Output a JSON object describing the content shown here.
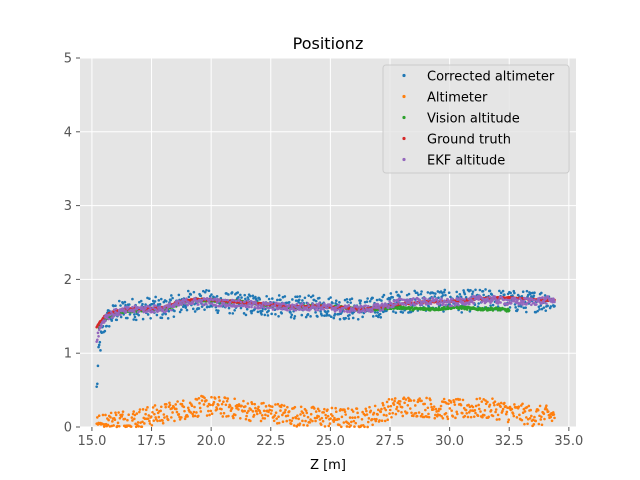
{
  "chart_data": {
    "type": "scatter",
    "title": "Positionz",
    "xlabel": "Z [m]",
    "ylabel": "",
    "xlim": [
      14.5,
      35.3
    ],
    "ylim": [
      0,
      5
    ],
    "xticks": [
      15.0,
      17.5,
      20.0,
      22.5,
      25.0,
      27.5,
      30.0,
      32.5,
      35.0
    ],
    "xtick_labels": [
      "15.0",
      "17.5",
      "20.0",
      "22.5",
      "25.0",
      "27.5",
      "30.0",
      "32.5",
      "35.0"
    ],
    "yticks": [
      0,
      1,
      2,
      3,
      4,
      5
    ],
    "ytick_labels": [
      "0",
      "1",
      "2",
      "3",
      "4",
      "5"
    ],
    "grid": true,
    "legend_position": "top-right",
    "series": [
      {
        "name": "Corrected altimeter",
        "color": "#1f77b4",
        "x": [
          15.2,
          15.3,
          15.4,
          15.5,
          15.6,
          15.8,
          16.0,
          16.5,
          17.0,
          17.5,
          18.0,
          18.5,
          19.0,
          19.5,
          20.0,
          20.5,
          21.0,
          21.5,
          22.0,
          22.5,
          23.0,
          23.5,
          24.0,
          24.5,
          25.0,
          25.5,
          26.0,
          26.5,
          27.0,
          27.5,
          28.0,
          28.5,
          29.0,
          29.5,
          30.0,
          30.5,
          31.0,
          31.5,
          32.0,
          32.5,
          33.0,
          33.5,
          34.0,
          34.4
        ],
        "y": [
          0.5,
          1.05,
          1.2,
          1.35,
          1.45,
          1.5,
          1.55,
          1.6,
          1.6,
          1.62,
          1.6,
          1.65,
          1.7,
          1.72,
          1.7,
          1.68,
          1.68,
          1.66,
          1.65,
          1.65,
          1.63,
          1.62,
          1.63,
          1.64,
          1.63,
          1.6,
          1.6,
          1.6,
          1.62,
          1.68,
          1.7,
          1.7,
          1.72,
          1.72,
          1.7,
          1.7,
          1.72,
          1.72,
          1.72,
          1.7,
          1.7,
          1.7,
          1.72,
          1.7
        ],
        "spread": 0.15
      },
      {
        "name": "Altimeter",
        "color": "#ff7f0e",
        "x": [
          15.2,
          15.5,
          16.0,
          16.5,
          17.0,
          17.5,
          18.0,
          18.5,
          19.0,
          19.5,
          20.0,
          20.5,
          21.0,
          21.5,
          22.0,
          22.5,
          23.0,
          23.5,
          24.0,
          24.5,
          25.0,
          25.5,
          26.0,
          26.5,
          27.0,
          27.5,
          28.0,
          28.5,
          29.0,
          29.5,
          30.0,
          30.5,
          31.0,
          31.5,
          32.0,
          32.5,
          33.0,
          33.5,
          34.0,
          34.4
        ],
        "y": [
          0.02,
          0.05,
          0.1,
          0.1,
          0.12,
          0.15,
          0.18,
          0.22,
          0.25,
          0.28,
          0.28,
          0.27,
          0.25,
          0.23,
          0.2,
          0.2,
          0.18,
          0.15,
          0.14,
          0.14,
          0.13,
          0.12,
          0.12,
          0.13,
          0.18,
          0.25,
          0.28,
          0.28,
          0.27,
          0.25,
          0.24,
          0.24,
          0.25,
          0.25,
          0.24,
          0.2,
          0.18,
          0.15,
          0.15,
          0.15
        ],
        "spread": 0.14
      },
      {
        "name": "Vision altitude",
        "color": "#2ca02c",
        "x": [
          15.3,
          15.5,
          16.0,
          16.5,
          17.0,
          17.5,
          18.0,
          18.5,
          19.0,
          19.5,
          20.0,
          20.5,
          21.0,
          21.5,
          22.0,
          22.5,
          23.0,
          23.5,
          24.0,
          24.5,
          25.0,
          25.5,
          26.0,
          26.5,
          27.0,
          27.5,
          28.0,
          28.5,
          29.0,
          29.5,
          30.0,
          30.5,
          31.0,
          31.5,
          32.0,
          32.5
        ],
        "y": [
          1.35,
          1.45,
          1.55,
          1.57,
          1.58,
          1.6,
          1.6,
          1.65,
          1.7,
          1.72,
          1.72,
          1.7,
          1.7,
          1.68,
          1.67,
          1.65,
          1.63,
          1.62,
          1.63,
          1.64,
          1.63,
          1.62,
          1.6,
          1.6,
          1.6,
          1.62,
          1.62,
          1.6,
          1.6,
          1.6,
          1.62,
          1.62,
          1.6,
          1.6,
          1.6,
          1.58
        ],
        "spread": 0.02
      },
      {
        "name": "Ground truth",
        "color": "#d62728",
        "x": [
          15.2,
          15.4,
          15.6,
          16.0,
          16.5,
          17.0,
          17.5,
          18.0,
          18.5,
          19.0,
          19.5,
          20.0,
          20.5,
          21.0,
          21.5,
          22.0,
          22.5,
          23.0,
          23.5,
          24.0,
          24.5,
          25.0,
          25.5,
          26.0,
          26.5,
          27.0,
          27.5,
          28.0,
          28.5,
          29.0,
          29.5,
          30.0,
          30.5,
          31.0,
          31.5,
          32.0,
          32.5,
          33.0,
          33.5,
          34.0,
          34.4
        ],
        "y": [
          1.35,
          1.45,
          1.52,
          1.57,
          1.6,
          1.6,
          1.6,
          1.62,
          1.68,
          1.72,
          1.73,
          1.72,
          1.71,
          1.7,
          1.68,
          1.67,
          1.66,
          1.64,
          1.63,
          1.63,
          1.64,
          1.63,
          1.62,
          1.6,
          1.6,
          1.62,
          1.65,
          1.67,
          1.68,
          1.7,
          1.7,
          1.7,
          1.71,
          1.73,
          1.74,
          1.75,
          1.75,
          1.74,
          1.73,
          1.72,
          1.72
        ],
        "spread": 0.01
      },
      {
        "name": "EKF altitude",
        "color": "#9467bd",
        "x": [
          15.2,
          15.4,
          15.6,
          16.0,
          16.5,
          17.0,
          17.5,
          18.0,
          18.5,
          19.0,
          19.5,
          20.0,
          20.5,
          21.0,
          21.5,
          22.0,
          22.5,
          23.0,
          23.5,
          24.0,
          24.5,
          25.0,
          25.5,
          26.0,
          26.5,
          27.0,
          27.5,
          28.0,
          28.5,
          29.0,
          29.5,
          30.0,
          30.5,
          31.0,
          31.5,
          32.0,
          32.5,
          33.0,
          33.5,
          34.0,
          34.4
        ],
        "y": [
          1.2,
          1.4,
          1.5,
          1.55,
          1.58,
          1.6,
          1.6,
          1.6,
          1.65,
          1.7,
          1.7,
          1.7,
          1.68,
          1.68,
          1.66,
          1.65,
          1.64,
          1.63,
          1.62,
          1.63,
          1.63,
          1.62,
          1.6,
          1.6,
          1.6,
          1.62,
          1.66,
          1.7,
          1.7,
          1.7,
          1.7,
          1.68,
          1.7,
          1.72,
          1.73,
          1.72,
          1.7,
          1.7,
          1.7,
          1.72,
          1.72
        ],
        "spread": 0.05
      }
    ]
  }
}
